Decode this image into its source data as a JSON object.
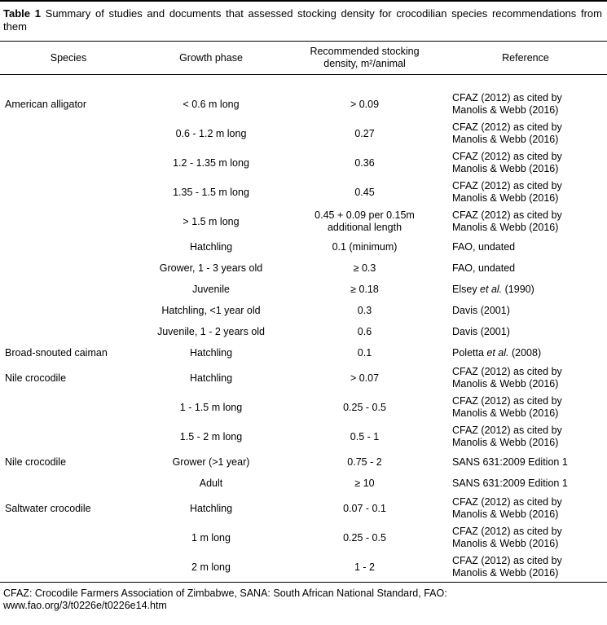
{
  "caption": {
    "label": "Table 1",
    "text": " Summary of studies and documents that assessed stocking density for crocodilian species recommendations from them"
  },
  "columns": [
    "Species",
    "Growth phase",
    "Recommended stocking\ndensity, m²/animal",
    "Reference"
  ],
  "rows": [
    {
      "species": "American alligator",
      "phase": "< 0.6 m long",
      "density": "> 0.09",
      "reference": "CFAZ (2012) as cited by\nManolis & Webb (2016)"
    },
    {
      "species": "",
      "phase": "0.6 - 1.2 m long",
      "density": "0.27",
      "reference": "CFAZ (2012) as cited by\nManolis & Webb (2016)"
    },
    {
      "species": "",
      "phase": "1.2 - 1.35 m long",
      "density": "0.36",
      "reference": "CFAZ (2012) as cited by\nManolis & Webb (2016)"
    },
    {
      "species": "",
      "phase": "1.35 - 1.5 m long",
      "density": "0.45",
      "reference": "CFAZ (2012) as cited by\nManolis & Webb (2016)"
    },
    {
      "species": "",
      "phase": "> 1.5 m long",
      "density": "0.45 + 0.09 per 0.15m\nadditional length",
      "reference": "CFAZ (2012) as cited by\nManolis & Webb (2016)"
    },
    {
      "species": "",
      "phase": "Hatchling",
      "density": "0.1 (minimum)",
      "reference": "FAO, undated"
    },
    {
      "species": "",
      "phase": "Grower, 1 - 3 years old",
      "density": "≥ 0.3",
      "reference": "FAO, undated"
    },
    {
      "species": "",
      "phase": "Juvenile",
      "density": "≥ 0.18",
      "reference": "Elsey et al. (1990)"
    },
    {
      "species": "",
      "phase": "Hatchling, <1 year old",
      "density": "0.3",
      "reference": "Davis (2001)"
    },
    {
      "species": "",
      "phase": "Juvenile, 1 - 2 years old",
      "density": "0.6",
      "reference": "Davis (2001)"
    },
    {
      "species": "Broad-snouted caiman",
      "phase": "Hatchling",
      "density": "0.1",
      "reference": "Poletta et al. (2008)"
    },
    {
      "species": "Nile crocodile",
      "phase": "Hatchling",
      "density": "> 0.07",
      "reference": "CFAZ (2012) as cited by\nManolis & Webb (2016)"
    },
    {
      "species": "",
      "phase": "1 - 1.5 m long",
      "density": "0.25 - 0.5",
      "reference": "CFAZ (2012) as cited by\nManolis & Webb (2016)"
    },
    {
      "species": "",
      "phase": "1.5 - 2 m long",
      "density": "0.5 - 1",
      "reference": "CFAZ (2012) as cited by\nManolis & Webb (2016)"
    },
    {
      "species": "Nile crocodile",
      "phase": "Grower (>1 year)",
      "density": "0.75 - 2",
      "reference": "SANS 631:2009 Edition 1"
    },
    {
      "species": "",
      "phase": "Adult",
      "density": "≥ 10",
      "reference": "SANS 631:2009 Edition 1"
    },
    {
      "species": "Saltwater crocodile",
      "phase": "Hatchling",
      "density": "0.07 - 0.1",
      "reference": "CFAZ (2012) as cited by\nManolis & Webb (2016)"
    },
    {
      "species": "",
      "phase": "1 m long",
      "density": "0.25 - 0.5",
      "reference": "CFAZ (2012) as cited by\nManolis & Webb (2016)"
    },
    {
      "species": "",
      "phase": "2 m long",
      "density": "1 - 2",
      "reference": "CFAZ (2012) as cited by\nManolis & Webb (2016)"
    }
  ],
  "footnote": {
    "line1": "CFAZ: Crocodile Farmers Association of Zimbabwe, SANA: South African National Standard, FAO:",
    "line2": "www.fao.org/3/t0226e/t0226e14.htm"
  },
  "colors": {
    "text": "#000000",
    "background": "#ffffff",
    "rule": "#000000"
  }
}
